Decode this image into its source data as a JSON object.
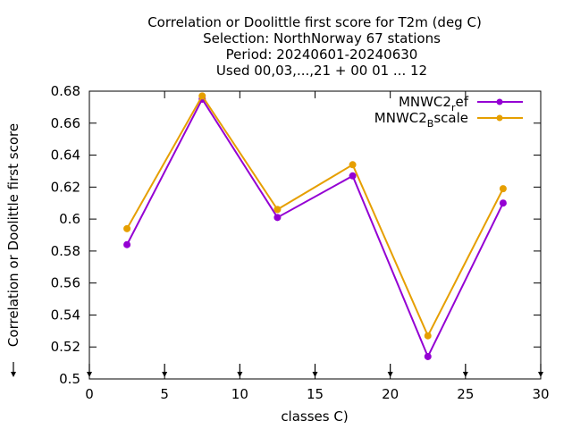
{
  "chart_data": {
    "type": "line",
    "title_lines": [
      "Correlation or Doolittle first score  for T2m (deg C)",
      "Selection: NorthNorway     67 stations",
      "Period: 20240601-20240630",
      "Used 00,03,...,21 + 00 01 ... 12"
    ],
    "xlabel": "classes C)",
    "ylabel": "Correlation or Doolittle first score",
    "xlim": [
      0,
      30
    ],
    "ylim": [
      0.5,
      0.68
    ],
    "xticks": [
      "0",
      "5",
      "10",
      "15",
      "20",
      "25",
      "30"
    ],
    "yticks": [
      "0.5",
      "0.52",
      "0.54",
      "0.56",
      "0.58",
      "0.6",
      "0.62",
      "0.64",
      "0.66",
      "0.68"
    ],
    "grid": false,
    "legend_position": "top-right",
    "x": [
      2.5,
      7.5,
      12.5,
      17.5,
      22.5,
      27.5
    ],
    "series": [
      {
        "name_base": "MNWC2",
        "name_sub": "r",
        "name_rest": "ef",
        "color": "#9400d3",
        "values": [
          0.584,
          0.675,
          0.601,
          0.627,
          0.514,
          0.61
        ]
      },
      {
        "name_base": "MNWC2",
        "name_sub": "B",
        "name_rest": "scale",
        "color": "#e69f00",
        "values": [
          0.594,
          0.677,
          0.606,
          0.634,
          0.527,
          0.619
        ]
      }
    ]
  }
}
